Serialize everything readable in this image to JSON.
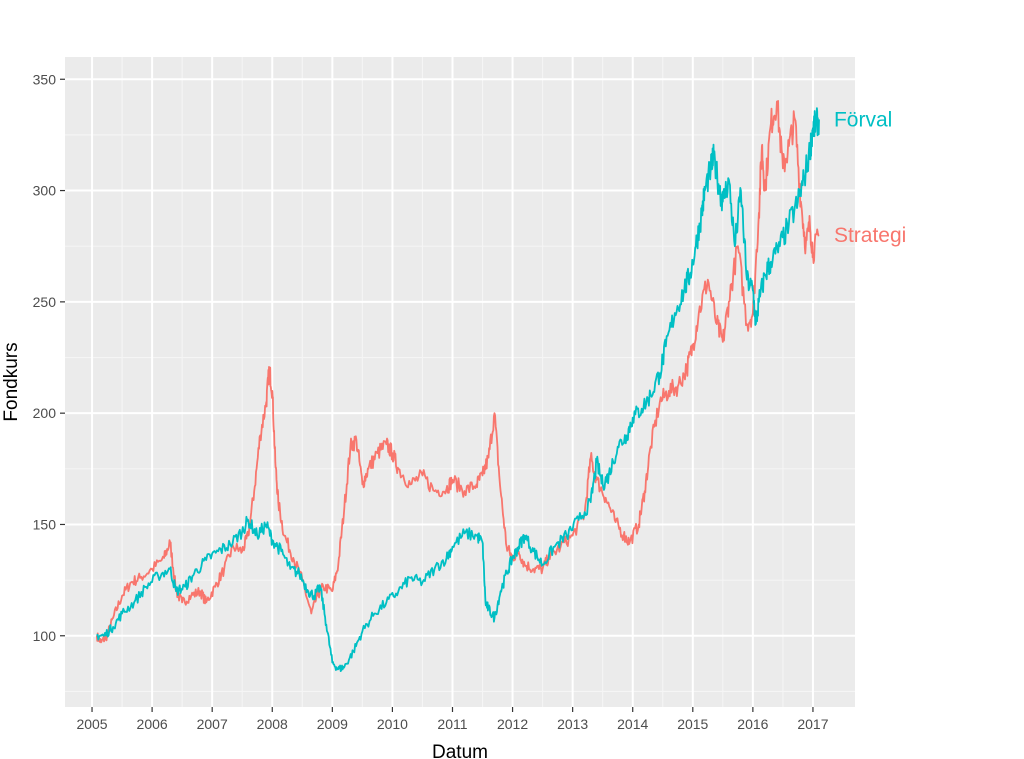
{
  "chart_data": {
    "type": "line",
    "title": "",
    "xlabel": "Datum",
    "ylabel": "Fondkurs",
    "xlim": [
      2004.55,
      2017.7
    ],
    "ylim": [
      68,
      360
    ],
    "x_ticks": [
      2005,
      2006,
      2007,
      2008,
      2009,
      2010,
      2011,
      2012,
      2013,
      2014,
      2015,
      2016,
      2017
    ],
    "x_tick_labels": [
      "2005",
      "2006",
      "2007",
      "2008",
      "2009",
      "2010",
      "2011",
      "2012",
      "2013",
      "2014",
      "2015",
      "2016",
      "2017"
    ],
    "y_ticks": [
      100,
      150,
      200,
      250,
      300,
      350
    ],
    "y_tick_labels": [
      "100",
      "150",
      "200",
      "250",
      "300",
      "350"
    ],
    "grid": true,
    "legend": "direct labels at line ends",
    "series": [
      {
        "name": "Förval",
        "color": "#00BFC4",
        "x": [
          2005.08,
          2005.2,
          2005.35,
          2005.5,
          2005.7,
          2005.9,
          2006.1,
          2006.3,
          2006.4,
          2006.55,
          2006.7,
          2006.9,
          2007.1,
          2007.3,
          2007.5,
          2007.6,
          2007.75,
          2007.9,
          2008.0,
          2008.15,
          2008.3,
          2008.45,
          2008.6,
          2008.7,
          2008.8,
          2008.9,
          2009.0,
          2009.1,
          2009.2,
          2009.35,
          2009.5,
          2009.7,
          2009.9,
          2010.1,
          2010.3,
          2010.5,
          2010.7,
          2010.9,
          2011.0,
          2011.2,
          2011.4,
          2011.5,
          2011.55,
          2011.6,
          2011.7,
          2011.8,
          2011.9,
          2012.0,
          2012.1,
          2012.2,
          2012.35,
          2012.5,
          2012.7,
          2012.9,
          2013.1,
          2013.3,
          2013.4,
          2013.5,
          2013.6,
          2013.75,
          2013.9,
          2014.0,
          2014.15,
          2014.3,
          2014.45,
          2014.55,
          2014.7,
          2014.85,
          2014.95,
          2015.05,
          2015.15,
          2015.2,
          2015.3,
          2015.35,
          2015.45,
          2015.5,
          2015.6,
          2015.7,
          2015.8,
          2015.9,
          2016.0,
          2016.05,
          2016.1,
          2016.2,
          2016.3,
          2016.45,
          2016.6,
          2016.75,
          2016.85,
          2016.95,
          2017.0,
          2017.05,
          2017.1
        ],
        "values": [
          100,
          100,
          104,
          110,
          115,
          122,
          127,
          130,
          120,
          122,
          128,
          134,
          138,
          141,
          147,
          152,
          145,
          150,
          143,
          138,
          130,
          128,
          120,
          118,
          122,
          105,
          88,
          85,
          86,
          93,
          102,
          110,
          115,
          120,
          126,
          124,
          130,
          135,
          140,
          146,
          145,
          142,
          115,
          112,
          108,
          120,
          128,
          135,
          140,
          145,
          138,
          132,
          140,
          145,
          152,
          160,
          178,
          168,
          172,
          185,
          190,
          198,
          202,
          208,
          218,
          230,
          245,
          255,
          262,
          275,
          290,
          300,
          310,
          315,
          300,
          295,
          305,
          275,
          300,
          260,
          255,
          240,
          250,
          262,
          268,
          275,
          285,
          295,
          305,
          318,
          328,
          330,
          332
        ]
      },
      {
        "name": "Strategi",
        "color": "#F8766D",
        "x": [
          2005.08,
          2005.15,
          2005.25,
          2005.35,
          2005.5,
          2005.65,
          2005.8,
          2006.0,
          2006.2,
          2006.3,
          2006.4,
          2006.5,
          2006.65,
          2006.8,
          2006.9,
          2007.05,
          2007.2,
          2007.35,
          2007.5,
          2007.6,
          2007.7,
          2007.8,
          2007.9,
          2007.95,
          2008.0,
          2008.05,
          2008.1,
          2008.2,
          2008.35,
          2008.5,
          2008.65,
          2008.75,
          2008.85,
          2009.0,
          2009.1,
          2009.2,
          2009.3,
          2009.4,
          2009.5,
          2009.6,
          2009.75,
          2009.9,
          2010.0,
          2010.1,
          2010.3,
          2010.5,
          2010.7,
          2010.9,
          2011.0,
          2011.2,
          2011.4,
          2011.5,
          2011.6,
          2011.7,
          2011.8,
          2011.9,
          2012.0,
          2012.1,
          2012.2,
          2012.35,
          2012.5,
          2012.6,
          2012.8,
          2013.0,
          2013.2,
          2013.3,
          2013.4,
          2013.55,
          2013.7,
          2013.85,
          2013.95,
          2014.1,
          2014.2,
          2014.3,
          2014.45,
          2014.6,
          2014.75,
          2014.9,
          2015.0,
          2015.1,
          2015.25,
          2015.4,
          2015.5,
          2015.6,
          2015.75,
          2015.9,
          2016.0,
          2016.1,
          2016.15,
          2016.2,
          2016.3,
          2016.4,
          2016.5,
          2016.6,
          2016.7,
          2016.8,
          2016.88,
          2016.95,
          2017.0,
          2017.1
        ],
        "values": [
          100,
          97,
          100,
          108,
          118,
          124,
          126,
          130,
          135,
          142,
          120,
          115,
          118,
          120,
          115,
          122,
          130,
          140,
          138,
          145,
          165,
          190,
          205,
          220,
          210,
          178,
          160,
          145,
          135,
          125,
          110,
          118,
          122,
          120,
          132,
          158,
          185,
          188,
          168,
          175,
          182,
          186,
          182,
          175,
          168,
          172,
          165,
          166,
          170,
          165,
          168,
          172,
          180,
          200,
          165,
          140,
          135,
          138,
          132,
          130,
          130,
          135,
          140,
          145,
          155,
          180,
          170,
          162,
          152,
          145,
          142,
          150,
          165,
          185,
          205,
          210,
          212,
          220,
          230,
          245,
          260,
          240,
          232,
          250,
          275,
          240,
          245,
          290,
          320,
          300,
          330,
          340,
          310,
          320,
          332,
          295,
          275,
          285,
          272,
          280
        ]
      }
    ]
  }
}
